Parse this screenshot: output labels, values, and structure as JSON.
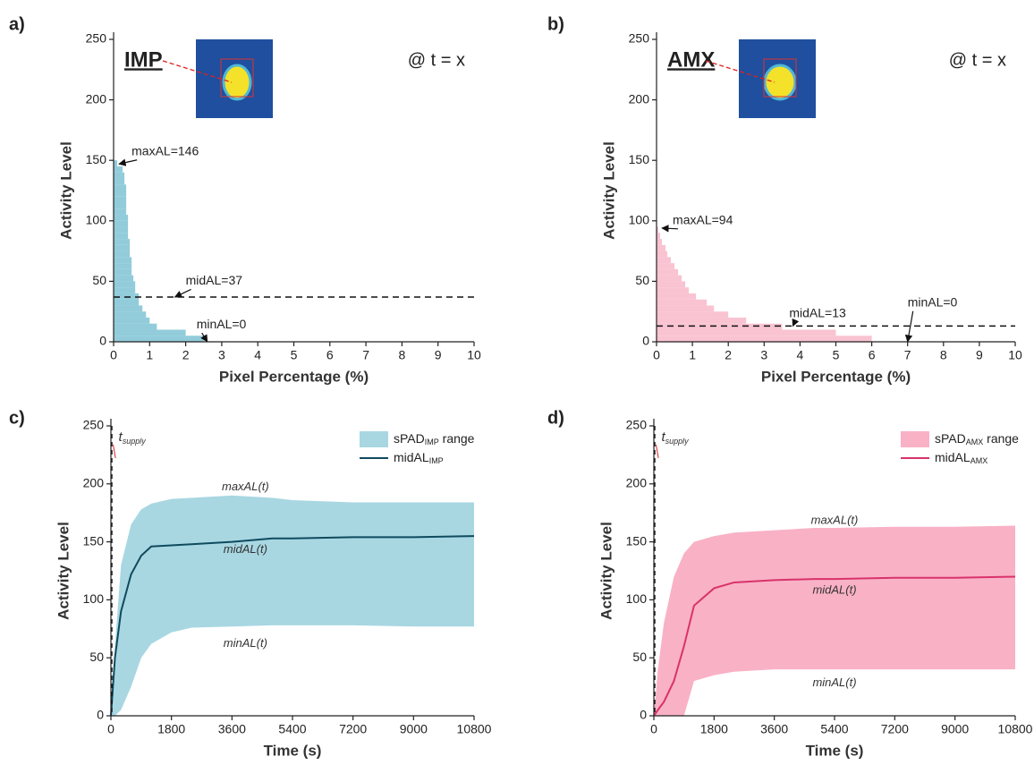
{
  "chart_data": [
    {
      "type": "histogram",
      "orientation": "horizontal",
      "panel_label": "a)",
      "title": "IMP",
      "corner_text": "@ t = x",
      "xlabel": "Pixel Percentage (%)",
      "ylabel": "Activity Level",
      "xlim": [
        0,
        10
      ],
      "ylim": [
        0,
        250
      ],
      "xticks": [
        0,
        1,
        2,
        3,
        4,
        5,
        6,
        7,
        8,
        9,
        10
      ],
      "yticks": [
        0,
        50,
        100,
        150,
        200,
        250
      ],
      "bins": [
        0,
        5,
        10,
        15,
        20,
        25,
        30,
        35,
        40,
        45,
        50,
        55,
        60,
        65,
        70,
        75,
        80,
        85,
        90,
        95,
        100,
        105,
        110,
        115,
        120,
        125,
        130,
        135,
        140,
        145,
        150
      ],
      "values": [
        2.5,
        2.0,
        1.2,
        1.0,
        0.9,
        0.8,
        0.7,
        0.7,
        0.6,
        0.6,
        0.55,
        0.5,
        0.5,
        0.5,
        0.45,
        0.45,
        0.45,
        0.4,
        0.4,
        0.4,
        0.4,
        0.35,
        0.35,
        0.35,
        0.35,
        0.35,
        0.3,
        0.3,
        0.25,
        0.1
      ],
      "color": "#7fc3d3",
      "mid_line": 37,
      "annotations": [
        "maxAL=146",
        "midAL=37",
        "minAL=0"
      ]
    },
    {
      "type": "histogram",
      "orientation": "horizontal",
      "panel_label": "b)",
      "title": "AMX",
      "corner_text": "@ t = x",
      "xlabel": "Pixel Percentage (%)",
      "ylabel": "Activity Level",
      "xlim": [
        0,
        10
      ],
      "ylim": [
        0,
        250
      ],
      "xticks": [
        0,
        1,
        2,
        3,
        4,
        5,
        6,
        7,
        8,
        9,
        10
      ],
      "yticks": [
        0,
        50,
        100,
        150,
        200,
        250
      ],
      "bins": [
        0,
        5,
        10,
        15,
        20,
        25,
        30,
        35,
        40,
        45,
        50,
        55,
        60,
        65,
        70,
        75,
        80,
        85,
        90,
        95
      ],
      "values": [
        6.0,
        5.0,
        3.5,
        2.5,
        2.0,
        1.6,
        1.4,
        1.1,
        0.9,
        0.8,
        0.7,
        0.6,
        0.5,
        0.4,
        0.3,
        0.25,
        0.15,
        0.1,
        0.05
      ],
      "color": "#f8b8ca",
      "mid_line": 13,
      "annotations": [
        "maxAL=94",
        "midAL=13",
        "minAL=0"
      ]
    },
    {
      "type": "range",
      "panel_label": "c)",
      "xlabel": "Time (s)",
      "ylabel": "Activity Level",
      "xlim": [
        0,
        10800
      ],
      "ylim": [
        0,
        250
      ],
      "xticks": [
        0,
        1800,
        3600,
        5400,
        7200,
        9000,
        10800
      ],
      "yticks": [
        0,
        50,
        100,
        150,
        200,
        250
      ],
      "supply_x": 30,
      "supply_label": {
        "text": "t",
        "sub": "supply"
      },
      "annotations": [
        "maxAL(t)",
        "midAL(t)",
        "minAL(t)"
      ],
      "x": [
        0,
        120,
        300,
        600,
        900,
        1200,
        1800,
        2400,
        3600,
        4800,
        5400,
        7200,
        9000,
        10800
      ],
      "series": [
        {
          "name": "sPAD",
          "name_sub": "IMP",
          "name_end": " range",
          "color": "#a8d7e2",
          "lower": [
            0,
            0,
            5,
            25,
            50,
            62,
            72,
            76,
            77,
            78,
            78,
            78,
            77,
            77
          ],
          "upper": [
            0,
            60,
            130,
            165,
            178,
            183,
            187,
            188,
            190,
            188,
            186,
            184,
            184,
            184
          ]
        },
        {
          "name": "midAL",
          "name_sub": "IMP",
          "color": "#0f4a5e",
          "values": [
            0,
            50,
            90,
            122,
            138,
            146,
            147,
            148,
            150,
            153,
            153,
            154,
            154,
            155
          ]
        }
      ]
    },
    {
      "type": "range",
      "panel_label": "d)",
      "xlabel": "Time (s)",
      "ylabel": "Activity Level",
      "xlim": [
        0,
        10800
      ],
      "ylim": [
        0,
        250
      ],
      "xticks": [
        0,
        1800,
        3600,
        5400,
        7200,
        9000,
        10800
      ],
      "yticks": [
        0,
        50,
        100,
        150,
        200,
        250
      ],
      "supply_x": 30,
      "supply_label": {
        "text": "t",
        "sub": "supply"
      },
      "annotations": [
        "maxAL(t)",
        "midAL(t)",
        "minAL(t)"
      ],
      "x": [
        0,
        120,
        300,
        600,
        900,
        1200,
        1800,
        2400,
        3600,
        4800,
        5400,
        7200,
        9000,
        10800
      ],
      "series": [
        {
          "name": "sPAD",
          "name_sub": "AMX",
          "name_end": " range",
          "color": "#f9b1c6",
          "lower": [
            0,
            0,
            0,
            0,
            0,
            30,
            35,
            38,
            40,
            40,
            40,
            40,
            40,
            40
          ],
          "upper": [
            0,
            40,
            80,
            120,
            140,
            150,
            155,
            158,
            160,
            162,
            162,
            163,
            163,
            164
          ]
        },
        {
          "name": "midAL",
          "name_sub": "AMX",
          "color": "#d8336a",
          "values": [
            0,
            5,
            12,
            30,
            60,
            95,
            110,
            115,
            117,
            118,
            118,
            119,
            119,
            120
          ]
        }
      ]
    }
  ]
}
